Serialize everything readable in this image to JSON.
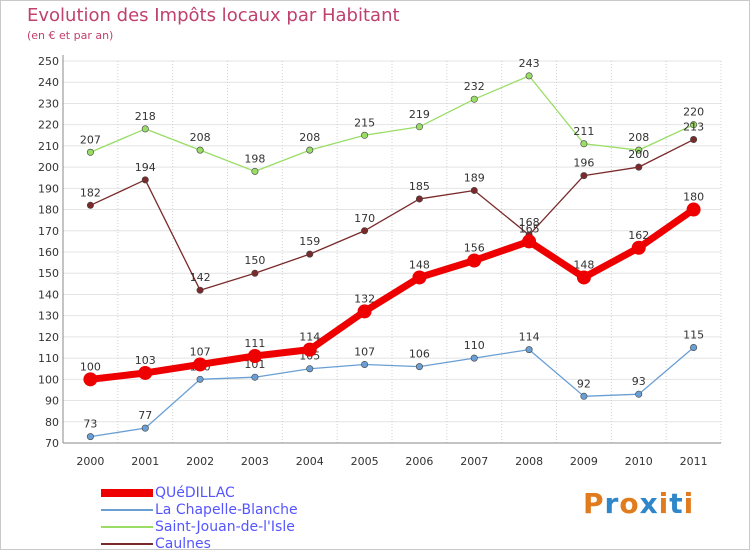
{
  "chart_data": {
    "type": "line",
    "title": "Evolution des Impôts locaux par Habitant",
    "subtitle": "(en € et par an)",
    "x": [
      "2000",
      "2001",
      "2002",
      "2003",
      "2004",
      "2005",
      "2006",
      "2007",
      "2008",
      "2009",
      "2010",
      "2011"
    ],
    "ylim": [
      70,
      250
    ],
    "yticks": [
      70,
      80,
      90,
      100,
      110,
      120,
      130,
      140,
      150,
      160,
      170,
      180,
      190,
      200,
      210,
      220,
      230,
      240,
      250
    ],
    "series": [
      {
        "name": "QUéDILLAC",
        "color": "#ee0000",
        "values": [
          100,
          103,
          107,
          111,
          114,
          132,
          148,
          156,
          165,
          148,
          162,
          180
        ]
      },
      {
        "name": "La Chapelle-Blanche",
        "color": "#6a9fd4",
        "values": [
          73,
          77,
          100,
          101,
          105,
          107,
          106,
          110,
          114,
          92,
          93,
          115
        ]
      },
      {
        "name": "Saint-Jouan-de-l'Isle",
        "color": "#99dd66",
        "values": [
          207,
          218,
          208,
          198,
          208,
          215,
          219,
          232,
          243,
          211,
          208,
          220
        ]
      },
      {
        "name": "Caulnes",
        "color": "#7a2a2a",
        "values": [
          182,
          194,
          142,
          150,
          159,
          170,
          185,
          189,
          168,
          196,
          200,
          213
        ]
      }
    ],
    "value_labels": [
      [
        "100",
        "103",
        "107",
        "111",
        "114",
        "132",
        "148",
        "156",
        "165",
        "148",
        "162",
        "180"
      ],
      [
        "73",
        "77",
        "100",
        "101",
        "105",
        "107",
        "106",
        "110",
        "114",
        "92",
        "93",
        "115"
      ],
      [
        "207",
        "218",
        "208",
        "198",
        "208",
        "215",
        "219",
        "232",
        "243",
        "211",
        "208",
        "220"
      ],
      [
        "182",
        "194",
        "142",
        "150",
        "159",
        "170",
        "185",
        "189",
        "168",
        "196",
        "200",
        "213"
      ]
    ]
  },
  "brand": {
    "text": "Proxiti",
    "letters": [
      "P",
      "r",
      "o",
      "x",
      "i",
      "t",
      "i"
    ],
    "colors": [
      "#e07b1e",
      "#2f86c9",
      "#e07b1e",
      "#2f86c9",
      "#e07b1e",
      "#2f86c9",
      "#e07b1e"
    ]
  }
}
